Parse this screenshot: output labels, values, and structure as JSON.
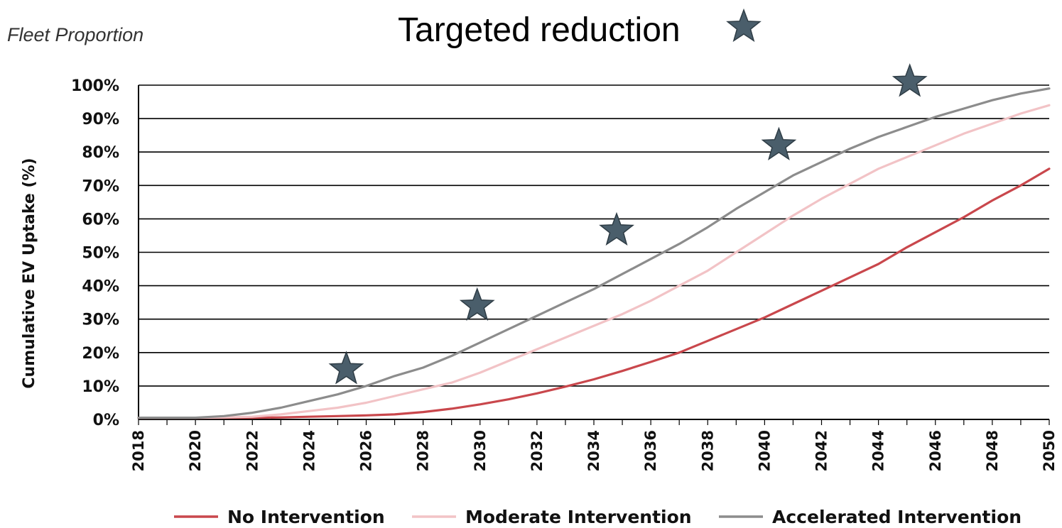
{
  "header": {
    "corner_label": "Fleet Proportion",
    "title": "Targeted reduction"
  },
  "colors": {
    "grid": "#000000",
    "no_intervention": "#c9474c",
    "moderate_intervention": "#f2c3c6",
    "accelerated_intervention": "#8c8c8c",
    "star": "#4a5e6b"
  },
  "chart_data": {
    "type": "line",
    "title": "Targeted reduction",
    "xlabel": "",
    "ylabel": "Cumulative EV Uptake  (%)",
    "xlim": [
      2018,
      2050
    ],
    "ylim": [
      0,
      100
    ],
    "grid": true,
    "legend_position": "bottom",
    "x_ticks": [
      "2018",
      "2020",
      "2022",
      "2024",
      "2026",
      "2028",
      "2030",
      "2032",
      "2034",
      "2036",
      "2038",
      "2040",
      "2042",
      "2044",
      "2046",
      "2048",
      "2050"
    ],
    "y_ticks": [
      "0%",
      "10%",
      "20%",
      "30%",
      "40%",
      "50%",
      "60%",
      "70%",
      "80%",
      "90%",
      "100%"
    ],
    "series": [
      {
        "name": "No Intervention",
        "x": [
          2018,
          2019,
          2020,
          2021,
          2022,
          2023,
          2024,
          2025,
          2026,
          2027,
          2028,
          2029,
          2030,
          2031,
          2032,
          2033,
          2034,
          2035,
          2036,
          2037,
          2038,
          2039,
          2040,
          2041,
          2042,
          2043,
          2044,
          2045,
          2046,
          2047,
          2048,
          2049,
          2050
        ],
        "values": [
          0.5,
          0.5,
          0.5,
          0.5,
          0.5,
          0.6,
          0.8,
          1.0,
          1.2,
          1.5,
          2.2,
          3.2,
          4.5,
          6.0,
          7.8,
          9.8,
          12.0,
          14.5,
          17.2,
          20.0,
          23.5,
          27.0,
          30.5,
          34.5,
          38.5,
          42.5,
          46.5,
          51.5,
          56.0,
          60.5,
          65.5,
          70.0,
          75.0
        ]
      },
      {
        "name": "Moderate Intervention",
        "x": [
          2018,
          2019,
          2020,
          2021,
          2022,
          2023,
          2024,
          2025,
          2026,
          2027,
          2028,
          2029,
          2030,
          2031,
          2032,
          2033,
          2034,
          2035,
          2036,
          2037,
          2038,
          2039,
          2040,
          2041,
          2042,
          2043,
          2044,
          2045,
          2046,
          2047,
          2048,
          2049,
          2050
        ],
        "values": [
          0.5,
          0.5,
          0.5,
          0.6,
          0.8,
          1.5,
          2.5,
          3.5,
          5.0,
          7.0,
          9.0,
          11.0,
          14.0,
          17.5,
          21.0,
          24.5,
          28.0,
          31.5,
          35.5,
          40.0,
          44.5,
          50.0,
          55.5,
          61.0,
          66.0,
          70.5,
          75.0,
          78.5,
          82.0,
          85.5,
          88.5,
          91.5,
          94.0
        ]
      },
      {
        "name": "Accelerated Intervention",
        "x": [
          2018,
          2019,
          2020,
          2021,
          2022,
          2023,
          2024,
          2025,
          2026,
          2027,
          2028,
          2029,
          2030,
          2031,
          2032,
          2033,
          2034,
          2035,
          2036,
          2037,
          2038,
          2039,
          2040,
          2041,
          2042,
          2043,
          2044,
          2045,
          2046,
          2047,
          2048,
          2049,
          2050
        ],
        "values": [
          0.5,
          0.5,
          0.5,
          1.0,
          2.0,
          3.5,
          5.5,
          7.5,
          10.0,
          13.0,
          15.5,
          19.0,
          23.0,
          27.0,
          31.0,
          35.0,
          39.0,
          43.5,
          48.0,
          52.5,
          57.5,
          63.0,
          68.0,
          73.0,
          77.0,
          81.0,
          84.5,
          87.5,
          90.5,
          93.0,
          95.5,
          97.5,
          99.0
        ]
      }
    ],
    "targets": [
      {
        "x": 2025.3,
        "y": 15
      },
      {
        "x": 2029.9,
        "y": 34
      },
      {
        "x": 2034.8,
        "y": 56.5
      },
      {
        "x": 2040.5,
        "y": 82
      },
      {
        "x": 2045.1,
        "y": 101
      }
    ]
  }
}
